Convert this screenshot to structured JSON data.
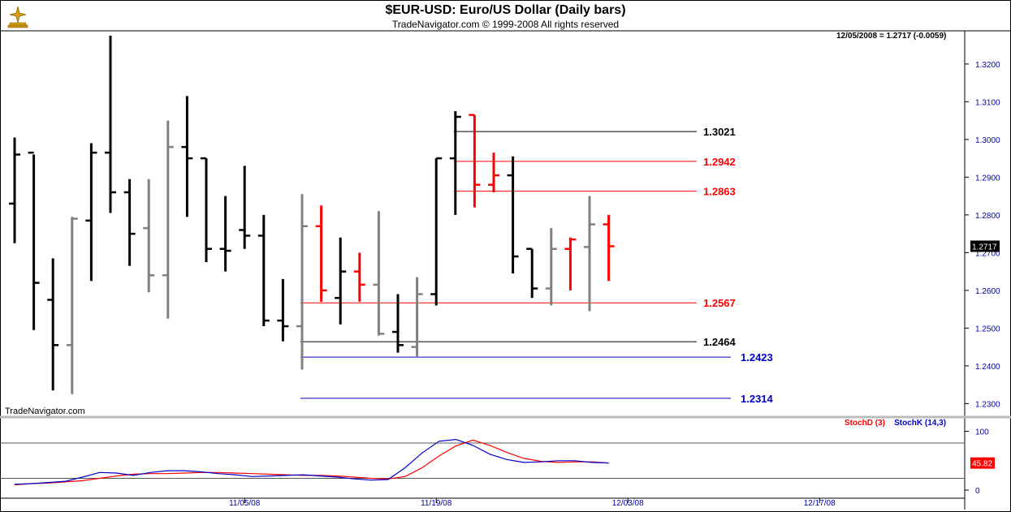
{
  "title": "$EUR-USD:  Euro/US Dollar  (Daily bars)",
  "subtitle": "TradeNavigator.com © 1999-2008 All rights reserved",
  "watermark": "TradeNavigator.com",
  "last_quote": "12/05/2008 = 1.2717 (-0.0059)",
  "price_marker": "1.2717",
  "stoch_marker": "45.82",
  "stoch_legend": {
    "d": "StochD (3)",
    "k": "StochK (14,3)"
  },
  "colors": {
    "black": "#000000",
    "gray": "#808080",
    "red": "#ff0000",
    "blue": "#0000c8",
    "axis_text": "#0000aa"
  },
  "chart_data": [
    {
      "type": "ohlc",
      "title": "$EUR-USD:  Euro/US Dollar  (Daily bars)",
      "x_tick_labels": [
        {
          "i": 12,
          "label": "11/05/08"
        },
        {
          "i": 22,
          "label": "11/19/08"
        },
        {
          "i": 32,
          "label": "12/03/08"
        },
        {
          "i": 42,
          "label": "12/17/08"
        }
      ],
      "y_ticks": [
        "1.2300",
        "1.2400",
        "1.2500",
        "1.2600",
        "1.2700",
        "1.2800",
        "1.2900",
        "1.3000",
        "1.3100",
        "1.3200"
      ],
      "ylim": [
        1.227,
        1.327
      ],
      "bars": [
        {
          "o": 1.283,
          "h": 1.3005,
          "l": 1.2725,
          "c": 1.296,
          "color": "black"
        },
        {
          "o": 1.2965,
          "h": 1.296,
          "l": 1.2495,
          "c": 1.262,
          "color": "black"
        },
        {
          "o": 1.2575,
          "h": 1.2685,
          "l": 1.2335,
          "c": 1.2455,
          "color": "black"
        },
        {
          "o": 1.2455,
          "h": 1.2795,
          "l": 1.2325,
          "c": 1.279,
          "color": "gray"
        },
        {
          "o": 1.2785,
          "h": 1.299,
          "l": 1.2625,
          "c": 1.2965,
          "color": "black"
        },
        {
          "o": 1.2965,
          "h": 1.3275,
          "l": 1.2805,
          "c": 1.286,
          "color": "black"
        },
        {
          "o": 1.286,
          "h": 1.2895,
          "l": 1.2665,
          "c": 1.275,
          "color": "black"
        },
        {
          "o": 1.2765,
          "h": 1.2895,
          "l": 1.2595,
          "c": 1.264,
          "color": "gray"
        },
        {
          "o": 1.264,
          "h": 1.305,
          "l": 1.2525,
          "c": 1.298,
          "color": "gray"
        },
        {
          "o": 1.298,
          "h": 1.3115,
          "l": 1.2795,
          "c": 1.295,
          "color": "black"
        },
        {
          "o": 1.295,
          "h": 1.295,
          "l": 1.2675,
          "c": 1.271,
          "color": "black"
        },
        {
          "o": 1.271,
          "h": 1.285,
          "l": 1.265,
          "c": 1.2705,
          "color": "black"
        },
        {
          "o": 1.276,
          "h": 1.293,
          "l": 1.271,
          "c": 1.2745,
          "color": "black"
        },
        {
          "o": 1.2745,
          "h": 1.28,
          "l": 1.2505,
          "c": 1.252,
          "color": "black"
        },
        {
          "o": 1.252,
          "h": 1.263,
          "l": 1.2465,
          "c": 1.2505,
          "color": "black"
        },
        {
          "o": 1.2505,
          "h": 1.2855,
          "l": 1.239,
          "c": 1.277,
          "color": "gray"
        },
        {
          "o": 1.277,
          "h": 1.2825,
          "l": 1.257,
          "c": 1.26,
          "color": "red"
        },
        {
          "o": 1.258,
          "h": 1.274,
          "l": 1.251,
          "c": 1.265,
          "color": "black"
        },
        {
          "o": 1.265,
          "h": 1.27,
          "l": 1.257,
          "c": 1.2615,
          "color": "red"
        },
        {
          "o": 1.2615,
          "h": 1.281,
          "l": 1.248,
          "c": 1.2485,
          "color": "gray"
        },
        {
          "o": 1.249,
          "h": 1.259,
          "l": 1.2435,
          "c": 1.2455,
          "color": "black"
        },
        {
          "o": 1.245,
          "h": 1.2635,
          "l": 1.2425,
          "c": 1.259,
          "color": "gray"
        },
        {
          "o": 1.259,
          "h": 1.295,
          "l": 1.256,
          "c": 1.295,
          "color": "black"
        },
        {
          "o": 1.295,
          "h": 1.3075,
          "l": 1.28,
          "c": 1.306,
          "color": "black"
        },
        {
          "o": 1.3065,
          "h": 1.3065,
          "l": 1.282,
          "c": 1.288,
          "color": "red"
        },
        {
          "o": 1.288,
          "h": 1.2965,
          "l": 1.286,
          "c": 1.2905,
          "color": "red"
        },
        {
          "o": 1.2905,
          "h": 1.2955,
          "l": 1.2645,
          "c": 1.269,
          "color": "black"
        },
        {
          "o": 1.271,
          "h": 1.271,
          "l": 1.258,
          "c": 1.2605,
          "color": "black"
        },
        {
          "o": 1.2605,
          "h": 1.2765,
          "l": 1.256,
          "c": 1.271,
          "color": "gray"
        },
        {
          "o": 1.271,
          "h": 1.274,
          "l": 1.26,
          "c": 1.2735,
          "color": "red"
        },
        {
          "o": 1.2715,
          "h": 1.285,
          "l": 1.2545,
          "c": 1.2775,
          "color": "gray"
        },
        {
          "o": 1.2775,
          "h": 1.28,
          "l": 1.2625,
          "c": 1.2717,
          "color": "red"
        }
      ],
      "levels": [
        {
          "value": 1.3021,
          "label": "1.3021",
          "color": "black",
          "from": 23
        },
        {
          "value": 1.2942,
          "label": "1.2942",
          "color": "red",
          "from": 23
        },
        {
          "value": 1.2863,
          "label": "1.2863",
          "color": "red",
          "from": 23
        },
        {
          "value": 1.2567,
          "label": "1.2567",
          "color": "red",
          "from": 15
        },
        {
          "value": 1.2464,
          "label": "1.2464",
          "color": "black",
          "from": 15
        },
        {
          "value": 1.2423,
          "label": "1.2423",
          "color": "blue",
          "from": 15
        },
        {
          "value": 1.2314,
          "label": "1.2314",
          "color": "blue",
          "from": 15
        }
      ]
    },
    {
      "type": "line",
      "ylim": [
        0,
        100
      ],
      "y_ticks": [
        "0",
        "100"
      ],
      "reference_lines": [
        20,
        80
      ],
      "series": [
        {
          "name": "StochD (3)",
          "color": "red",
          "values": [
            9,
            11,
            12,
            14,
            16,
            20,
            24,
            27,
            28,
            28,
            29,
            30,
            30,
            29,
            28,
            27,
            26,
            25,
            25,
            24,
            22,
            20,
            19,
            23,
            38,
            58,
            75,
            85,
            76,
            64,
            54,
            49,
            47,
            48,
            48,
            46
          ]
        },
        {
          "name": "StochK (14,3)",
          "color": "blue",
          "values": [
            10,
            11,
            13,
            15,
            22,
            30,
            29,
            25,
            30,
            33,
            33,
            31,
            28,
            26,
            23,
            24,
            25,
            26,
            24,
            22,
            19,
            17,
            18,
            38,
            63,
            83,
            86,
            76,
            61,
            52,
            47,
            48,
            50,
            50,
            47,
            46
          ]
        }
      ]
    }
  ]
}
